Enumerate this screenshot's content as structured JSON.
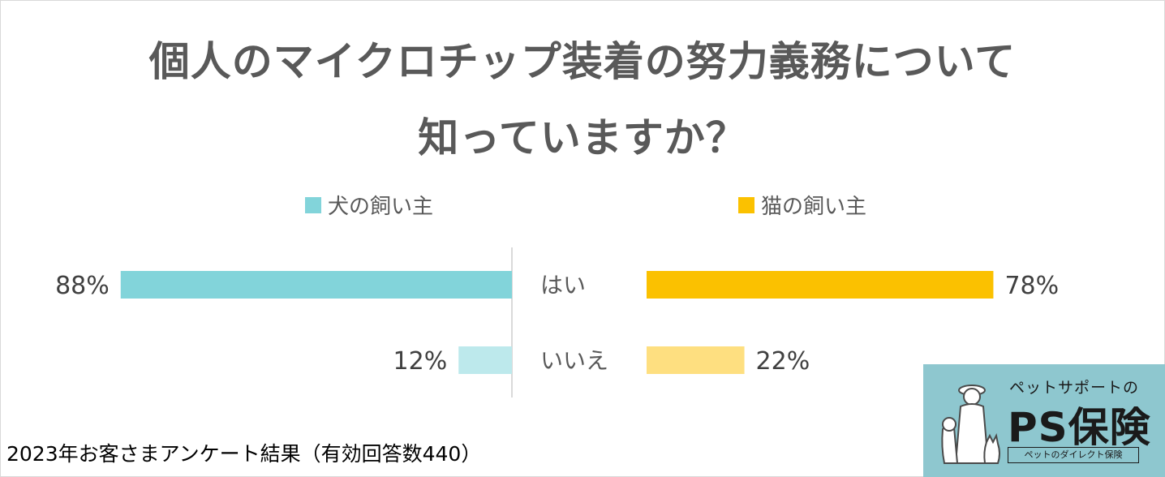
{
  "title_line1": "個人のマイクロチップ装着の努力義務について",
  "title_line2": "知っていますか？",
  "footer": "2023年お客さまアンケート結果（有効回答数440）",
  "logo": {
    "subtitle": "ペットサポートの",
    "name": "PS保険",
    "tagline": "ペットのダイレクト保険",
    "icon": "person-with-dog-and-cat-icon"
  },
  "chart_data": {
    "type": "bar",
    "orientation": "horizontal-butterfly",
    "categories": [
      "はい",
      "いいえ"
    ],
    "series": [
      {
        "name": "犬の飼い主",
        "side": "left",
        "values": [
          88,
          12
        ],
        "colors": [
          "#82d4da",
          "#bde9ec"
        ]
      },
      {
        "name": "猫の飼い主",
        "side": "right",
        "values": [
          78,
          22
        ],
        "colors": [
          "#fbc100",
          "#fedf80"
        ]
      }
    ],
    "value_labels": [
      [
        "88%",
        "12%"
      ],
      [
        "78%",
        "22%"
      ]
    ],
    "xlim": [
      0,
      100
    ],
    "unit": "%",
    "grid": false,
    "legend_position": "top"
  }
}
